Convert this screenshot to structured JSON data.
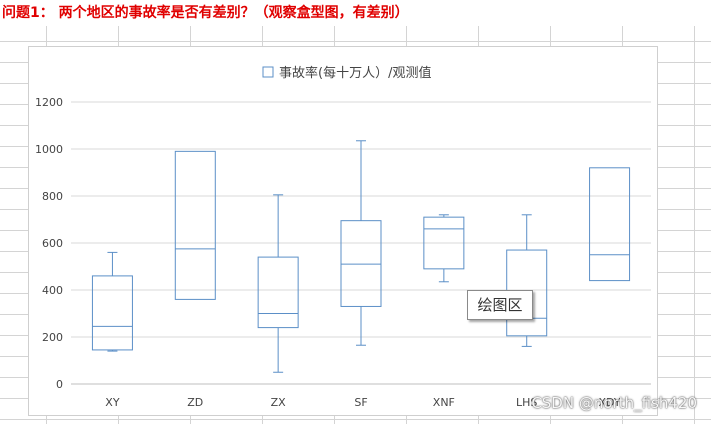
{
  "page": {
    "question": "问题1： 两个地区的事故率是否有差别？（观察盒型图，有差别）",
    "tooltip": "绘图区",
    "watermark": "CSDN @north_fish420"
  },
  "colors": {
    "box_stroke": "#5b8fc7",
    "grid": "#d9d9d9",
    "axis": "#bfbfbf",
    "text": "#444444",
    "question": "#e00000"
  },
  "chart_data": {
    "type": "box",
    "legend": "事故率(每十万人）/观测值",
    "legend_position": "top",
    "grid": true,
    "ylim": [
      0,
      1200
    ],
    "yticks": [
      0,
      200,
      400,
      600,
      800,
      1000,
      1200
    ],
    "categories": [
      "XY",
      "ZD",
      "ZX",
      "SF",
      "XNF",
      "LHS",
      "XDY"
    ],
    "boxes": [
      {
        "category": "XY",
        "min": 140,
        "q1": 145,
        "median": 245,
        "q3": 460,
        "max": 560
      },
      {
        "category": "ZD",
        "min": 360,
        "q1": 360,
        "median": 575,
        "q3": 990,
        "max": 990
      },
      {
        "category": "ZX",
        "min": 50,
        "q1": 240,
        "median": 300,
        "q3": 540,
        "max": 805
      },
      {
        "category": "SF",
        "min": 165,
        "q1": 330,
        "median": 510,
        "q3": 695,
        "max": 1035
      },
      {
        "category": "XNF",
        "min": 435,
        "q1": 490,
        "median": 660,
        "q3": 710,
        "max": 720
      },
      {
        "category": "LHS",
        "min": 160,
        "q1": 205,
        "median": 280,
        "q3": 570,
        "max": 720
      },
      {
        "category": "XDY",
        "min": 440,
        "q1": 440,
        "median": 550,
        "q3": 920,
        "max": 920
      }
    ]
  }
}
